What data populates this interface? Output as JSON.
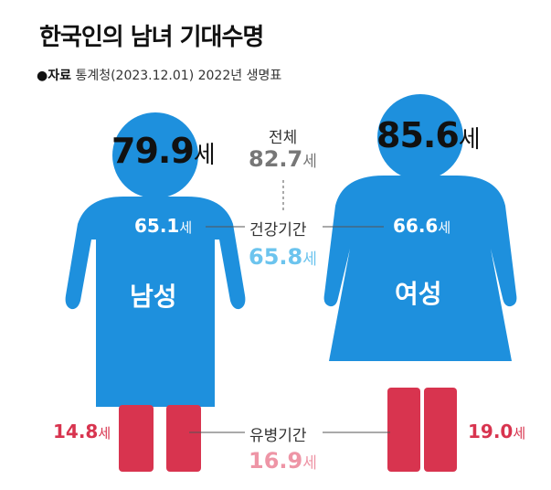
{
  "title": "한국인의 남녀 기대수명",
  "source": {
    "label": "●자료",
    "text": "통계청(2023.12.01) 2022년 생명표"
  },
  "unit": "세",
  "colors": {
    "figure": "#1e90dd",
    "sick": "#d8344f",
    "total": "#777777",
    "healthy_total": "#6cc4ee",
    "sick_total": "#ee95a6",
    "line": "#555555"
  },
  "chart_data": {
    "type": "bar",
    "categories": [
      "남성",
      "여성"
    ],
    "series": [
      {
        "name": "기대수명",
        "values": [
          79.9,
          85.6
        ]
      },
      {
        "name": "건강기간",
        "values": [
          65.1,
          66.6
        ]
      },
      {
        "name": "유병기간",
        "values": [
          14.8,
          19.0
        ]
      }
    ],
    "totals": {
      "기대수명": 82.7,
      "건강기간": 65.8,
      "유병기간": 16.9
    },
    "labels": {
      "total": "전체",
      "healthy": "건강기간",
      "sick": "유병기간"
    },
    "male": {
      "name": "남성",
      "life": "79.9",
      "healthy": "65.1",
      "sick": "14.8"
    },
    "female": {
      "name": "여성",
      "life": "85.6",
      "healthy": "66.6",
      "sick": "19.0"
    },
    "total": {
      "life": "82.7",
      "healthy": "65.8",
      "sick": "16.9"
    }
  }
}
